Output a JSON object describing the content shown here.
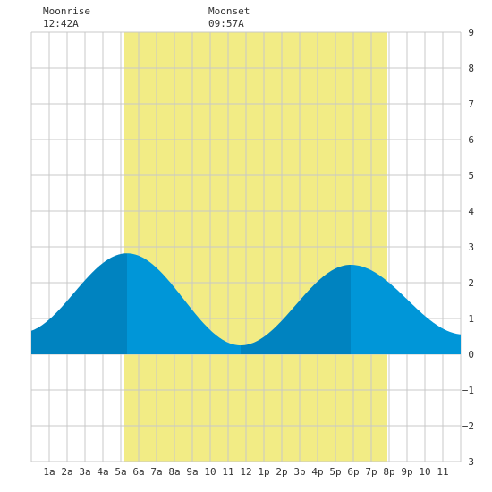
{
  "header": {
    "moonrise_label": "Moonrise",
    "moonrise_time": "12:42A",
    "moonset_label": "Moonset",
    "moonset_time": "09:57A"
  },
  "colors": {
    "daylight": "#f2ec85",
    "tide_rising": "#0083c0",
    "tide_falling": "#0096d8",
    "grid": "#c8c8c8",
    "text": "#333333"
  },
  "chart_data": {
    "type": "area",
    "title": "",
    "xlabel": "",
    "ylabel": "",
    "xlim": [
      0,
      24
    ],
    "ylim": [
      -3,
      9
    ],
    "grid": true,
    "x_ticks": [
      1,
      2,
      3,
      4,
      5,
      6,
      7,
      8,
      9,
      10,
      11,
      12,
      13,
      14,
      15,
      16,
      17,
      18,
      19,
      20,
      21,
      22,
      23
    ],
    "x_tick_labels": [
      "1a",
      "2a",
      "3a",
      "4a",
      "5a",
      "6a",
      "7a",
      "8a",
      "9a",
      "10",
      "11",
      "12",
      "1p",
      "2p",
      "3p",
      "4p",
      "5p",
      "6p",
      "7p",
      "8p",
      "9p",
      "10",
      "11"
    ],
    "y_ticks": [
      9,
      8,
      7,
      6,
      5,
      4,
      3,
      2,
      1,
      0,
      -1,
      -2,
      -3
    ],
    "y_tick_labels": [
      "9",
      "8",
      "7",
      "6",
      "5",
      "4",
      "3",
      "2",
      "1",
      "0",
      "−1",
      "−2",
      "−3"
    ],
    "daylight": [
      5.2,
      19.9
    ],
    "extremes": [
      {
        "x": -0.6,
        "y": 0.6,
        "kind": "low"
      },
      {
        "x": 5.35,
        "y": 2.82,
        "kind": "high"
      },
      {
        "x": 11.7,
        "y": 0.25,
        "kind": "low"
      },
      {
        "x": 17.85,
        "y": 2.5,
        "kind": "high"
      },
      {
        "x": 24.2,
        "y": 0.55,
        "kind": "low"
      }
    ]
  }
}
